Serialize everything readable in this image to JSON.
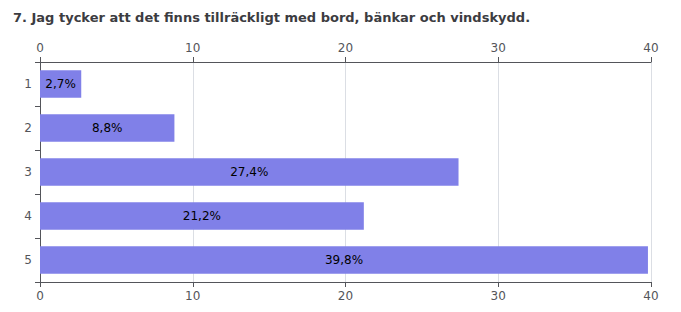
{
  "chart_data": {
    "type": "bar",
    "orientation": "horizontal",
    "title": "7. Jag tycker att det finns tillräckligt med bord, bänkar och vindskydd.",
    "categories": [
      "1",
      "2",
      "3",
      "4",
      "5"
    ],
    "values": [
      2.7,
      8.8,
      27.4,
      21.2,
      39.8
    ],
    "value_labels": [
      "2,7%",
      "8,8%",
      "27,4%",
      "21,2%",
      "39,8%"
    ],
    "data_labels": true,
    "color": "#8080e8",
    "xlim": [
      0,
      40
    ],
    "xticks": [
      0,
      10,
      20,
      30,
      40
    ],
    "grid": true
  }
}
